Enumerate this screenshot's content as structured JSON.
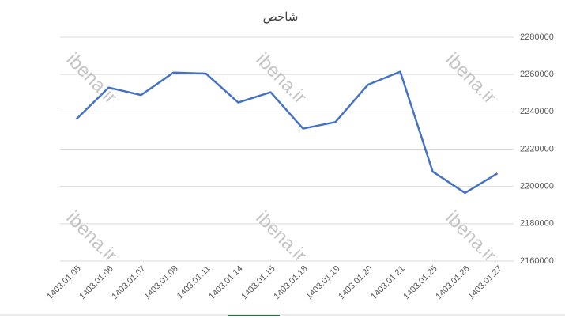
{
  "chart_data": {
    "type": "line",
    "title": "شاخص",
    "categories": [
      "1403.01.05",
      "1403.01.06",
      "1403.01.07",
      "1403.01.08",
      "1403.01.11",
      "1403.01.14",
      "1403.01.15",
      "1403.01.18",
      "1403.01.19",
      "1403.01.20",
      "1403.01.21",
      "1403.01.25",
      "1403.01.26",
      "1403.01.27"
    ],
    "series": [
      {
        "color": "#4472c4",
        "values": [
          2236000,
          2253000,
          2249000,
          2261000,
          2260500,
          2245000,
          2250500,
          2231000,
          2234500,
          2254500,
          2261500,
          2208000,
          2196500,
          2207000
        ]
      }
    ],
    "ylim": [
      2160000,
      2280000
    ],
    "yticks": [
      2160000,
      2180000,
      2200000,
      2220000,
      2240000,
      2260000,
      2280000
    ],
    "grid": true,
    "watermarks": [
      "ibena.ir",
      "ibena.ir",
      "ibena.ir",
      "ibena.ir",
      "ibena.ir",
      "ibena.ir"
    ]
  }
}
